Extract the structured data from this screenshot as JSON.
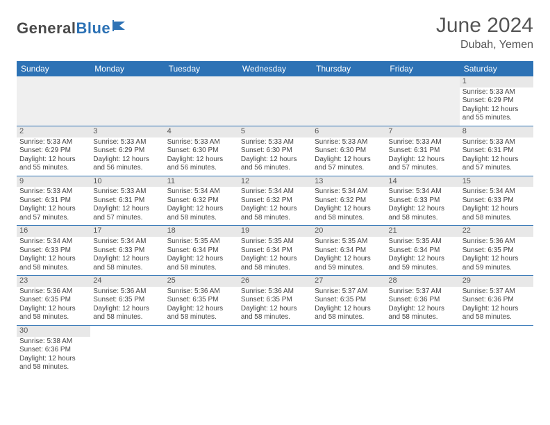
{
  "brand": {
    "dark": "General",
    "blue": "Blue",
    "flag_color": "#2d72b5"
  },
  "title": "June 2024",
  "location": "Dubah, Yemen",
  "header_bg": "#2d72b5",
  "header_fg": "#ffffff",
  "daynum_bg": "#e8e8e8",
  "border_color": "#2d72b5",
  "weekdays": [
    "Sunday",
    "Monday",
    "Tuesday",
    "Wednesday",
    "Thursday",
    "Friday",
    "Saturday"
  ],
  "days": {
    "1": {
      "sunrise": "5:33 AM",
      "sunset": "6:29 PM",
      "daylight": "12 hours and 55 minutes."
    },
    "2": {
      "sunrise": "5:33 AM",
      "sunset": "6:29 PM",
      "daylight": "12 hours and 55 minutes."
    },
    "3": {
      "sunrise": "5:33 AM",
      "sunset": "6:29 PM",
      "daylight": "12 hours and 56 minutes."
    },
    "4": {
      "sunrise": "5:33 AM",
      "sunset": "6:30 PM",
      "daylight": "12 hours and 56 minutes."
    },
    "5": {
      "sunrise": "5:33 AM",
      "sunset": "6:30 PM",
      "daylight": "12 hours and 56 minutes."
    },
    "6": {
      "sunrise": "5:33 AM",
      "sunset": "6:30 PM",
      "daylight": "12 hours and 57 minutes."
    },
    "7": {
      "sunrise": "5:33 AM",
      "sunset": "6:31 PM",
      "daylight": "12 hours and 57 minutes."
    },
    "8": {
      "sunrise": "5:33 AM",
      "sunset": "6:31 PM",
      "daylight": "12 hours and 57 minutes."
    },
    "9": {
      "sunrise": "5:33 AM",
      "sunset": "6:31 PM",
      "daylight": "12 hours and 57 minutes."
    },
    "10": {
      "sunrise": "5:33 AM",
      "sunset": "6:31 PM",
      "daylight": "12 hours and 57 minutes."
    },
    "11": {
      "sunrise": "5:34 AM",
      "sunset": "6:32 PM",
      "daylight": "12 hours and 58 minutes."
    },
    "12": {
      "sunrise": "5:34 AM",
      "sunset": "6:32 PM",
      "daylight": "12 hours and 58 minutes."
    },
    "13": {
      "sunrise": "5:34 AM",
      "sunset": "6:32 PM",
      "daylight": "12 hours and 58 minutes."
    },
    "14": {
      "sunrise": "5:34 AM",
      "sunset": "6:33 PM",
      "daylight": "12 hours and 58 minutes."
    },
    "15": {
      "sunrise": "5:34 AM",
      "sunset": "6:33 PM",
      "daylight": "12 hours and 58 minutes."
    },
    "16": {
      "sunrise": "5:34 AM",
      "sunset": "6:33 PM",
      "daylight": "12 hours and 58 minutes."
    },
    "17": {
      "sunrise": "5:34 AM",
      "sunset": "6:33 PM",
      "daylight": "12 hours and 58 minutes."
    },
    "18": {
      "sunrise": "5:35 AM",
      "sunset": "6:34 PM",
      "daylight": "12 hours and 58 minutes."
    },
    "19": {
      "sunrise": "5:35 AM",
      "sunset": "6:34 PM",
      "daylight": "12 hours and 58 minutes."
    },
    "20": {
      "sunrise": "5:35 AM",
      "sunset": "6:34 PM",
      "daylight": "12 hours and 59 minutes."
    },
    "21": {
      "sunrise": "5:35 AM",
      "sunset": "6:34 PM",
      "daylight": "12 hours and 59 minutes."
    },
    "22": {
      "sunrise": "5:36 AM",
      "sunset": "6:35 PM",
      "daylight": "12 hours and 59 minutes."
    },
    "23": {
      "sunrise": "5:36 AM",
      "sunset": "6:35 PM",
      "daylight": "12 hours and 58 minutes."
    },
    "24": {
      "sunrise": "5:36 AM",
      "sunset": "6:35 PM",
      "daylight": "12 hours and 58 minutes."
    },
    "25": {
      "sunrise": "5:36 AM",
      "sunset": "6:35 PM",
      "daylight": "12 hours and 58 minutes."
    },
    "26": {
      "sunrise": "5:36 AM",
      "sunset": "6:35 PM",
      "daylight": "12 hours and 58 minutes."
    },
    "27": {
      "sunrise": "5:37 AM",
      "sunset": "6:35 PM",
      "daylight": "12 hours and 58 minutes."
    },
    "28": {
      "sunrise": "5:37 AM",
      "sunset": "6:36 PM",
      "daylight": "12 hours and 58 minutes."
    },
    "29": {
      "sunrise": "5:37 AM",
      "sunset": "6:36 PM",
      "daylight": "12 hours and 58 minutes."
    },
    "30": {
      "sunrise": "5:38 AM",
      "sunset": "6:36 PM",
      "daylight": "12 hours and 58 minutes."
    }
  },
  "labels": {
    "sunrise": "Sunrise: ",
    "sunset": "Sunset: ",
    "daylight": "Daylight: "
  },
  "grid": [
    [
      null,
      null,
      null,
      null,
      null,
      null,
      "1"
    ],
    [
      "2",
      "3",
      "4",
      "5",
      "6",
      "7",
      "8"
    ],
    [
      "9",
      "10",
      "11",
      "12",
      "13",
      "14",
      "15"
    ],
    [
      "16",
      "17",
      "18",
      "19",
      "20",
      "21",
      "22"
    ],
    [
      "23",
      "24",
      "25",
      "26",
      "27",
      "28",
      "29"
    ],
    [
      "30",
      null,
      null,
      null,
      null,
      null,
      null
    ]
  ]
}
